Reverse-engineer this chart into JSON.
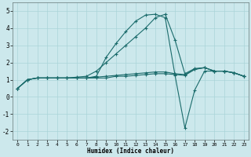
{
  "xlabel": "Humidex (Indice chaleur)",
  "bg_color": "#cce8ec",
  "grid_color": "#aad4d8",
  "line_color": "#1a6b6b",
  "xlim": [
    -0.5,
    23.5
  ],
  "ylim": [
    -2.5,
    5.5
  ],
  "yticks": [
    -2,
    -1,
    0,
    1,
    2,
    3,
    4,
    5
  ],
  "xticks": [
    0,
    1,
    2,
    3,
    4,
    5,
    6,
    7,
    8,
    9,
    10,
    11,
    12,
    13,
    14,
    15,
    16,
    17,
    18,
    19,
    20,
    21,
    22,
    23
  ],
  "series": [
    {
      "x": [
        0,
        1,
        2,
        3,
        4,
        5,
        6,
        7,
        8,
        9,
        10,
        11,
        12,
        13,
        14,
        15,
        16,
        17,
        18,
        19,
        20,
        21,
        22,
        23
      ],
      "y": [
        0.5,
        1.0,
        1.1,
        1.1,
        1.1,
        1.1,
        1.15,
        1.2,
        1.5,
        2.0,
        2.5,
        3.0,
        3.5,
        4.0,
        4.6,
        4.8,
        3.3,
        1.35,
        1.65,
        1.7,
        1.5,
        1.5,
        1.4,
        1.2
      ]
    },
    {
      "x": [
        0,
        1,
        2,
        3,
        4,
        5,
        6,
        7,
        8,
        9,
        10,
        11,
        12,
        13,
        14,
        15,
        16,
        17,
        18,
        19,
        20,
        21,
        22,
        23
      ],
      "y": [
        0.5,
        1.0,
        1.1,
        1.1,
        1.1,
        1.1,
        1.1,
        1.1,
        1.1,
        1.1,
        1.2,
        1.2,
        1.25,
        1.3,
        1.35,
        1.35,
        1.3,
        1.25,
        1.6,
        1.7,
        1.5,
        1.5,
        1.4,
        1.2
      ]
    },
    {
      "x": [
        0,
        1,
        2,
        3,
        4,
        5,
        6,
        7,
        8,
        9,
        10,
        11,
        12,
        13,
        14,
        15,
        16,
        17,
        18,
        19,
        20,
        21,
        22,
        23
      ],
      "y": [
        0.5,
        1.0,
        1.1,
        1.1,
        1.1,
        1.1,
        1.1,
        1.1,
        1.15,
        1.2,
        1.25,
        1.3,
        1.35,
        1.4,
        1.45,
        1.45,
        1.35,
        1.3,
        1.6,
        1.7,
        1.5,
        1.5,
        1.4,
        1.2
      ]
    },
    {
      "x": [
        0,
        1,
        2,
        3,
        4,
        5,
        6,
        7,
        8,
        9,
        10,
        11,
        12,
        13,
        14,
        15,
        16,
        17,
        18,
        19,
        20,
        21,
        22,
        23
      ],
      "y": [
        0.5,
        1.0,
        1.1,
        1.1,
        1.1,
        1.1,
        1.1,
        1.1,
        1.2,
        2.3,
        3.1,
        3.8,
        4.4,
        4.75,
        4.8,
        4.6,
        1.25,
        -1.8,
        0.4,
        1.5,
        1.5,
        1.5,
        1.4,
        1.2
      ]
    }
  ]
}
